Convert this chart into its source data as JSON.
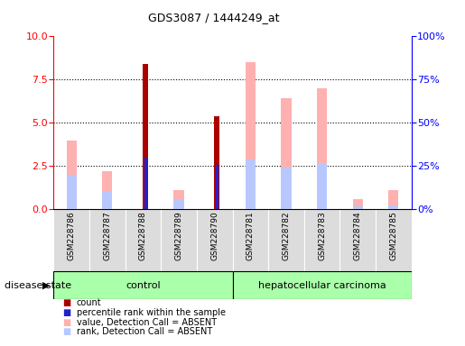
{
  "title": "GDS3087 / 1444249_at",
  "samples": [
    "GSM228786",
    "GSM228787",
    "GSM228788",
    "GSM228789",
    "GSM228790",
    "GSM228781",
    "GSM228782",
    "GSM228783",
    "GSM228784",
    "GSM228785"
  ],
  "groups": [
    "control",
    "control",
    "control",
    "control",
    "control",
    "hepatocellular carcinoma",
    "hepatocellular carcinoma",
    "hepatocellular carcinoma",
    "hepatocellular carcinoma",
    "hepatocellular carcinoma"
  ],
  "count": [
    0,
    0,
    8.4,
    0,
    5.4,
    0,
    0,
    0,
    0,
    0
  ],
  "percentile_rank": [
    0,
    0,
    30,
    0,
    25,
    0,
    0,
    0,
    0,
    0
  ],
  "value_absent": [
    4.0,
    2.2,
    0,
    1.1,
    0,
    8.5,
    6.4,
    7.0,
    0.6,
    1.1
  ],
  "rank_absent": [
    20,
    10,
    0,
    6,
    0,
    29,
    24,
    26,
    1.5,
    2
  ],
  "count_color": "#AA0000",
  "percentile_rank_color": "#2222CC",
  "value_absent_color": "#FFB0B0",
  "rank_absent_color": "#B8C8FF",
  "ylim_left": [
    0,
    10
  ],
  "ylim_right": [
    0,
    100
  ],
  "yticks_left": [
    0,
    2.5,
    5.0,
    7.5,
    10
  ],
  "yticks_right": [
    0,
    25,
    50,
    75,
    100
  ],
  "disease_state_label": "disease state",
  "legend_items": [
    {
      "label": "count",
      "color": "#AA0000"
    },
    {
      "label": "percentile rank within the sample",
      "color": "#2222CC"
    },
    {
      "label": "value, Detection Call = ABSENT",
      "color": "#FFB0B0"
    },
    {
      "label": "rank, Detection Call = ABSENT",
      "color": "#B8C8FF"
    }
  ]
}
